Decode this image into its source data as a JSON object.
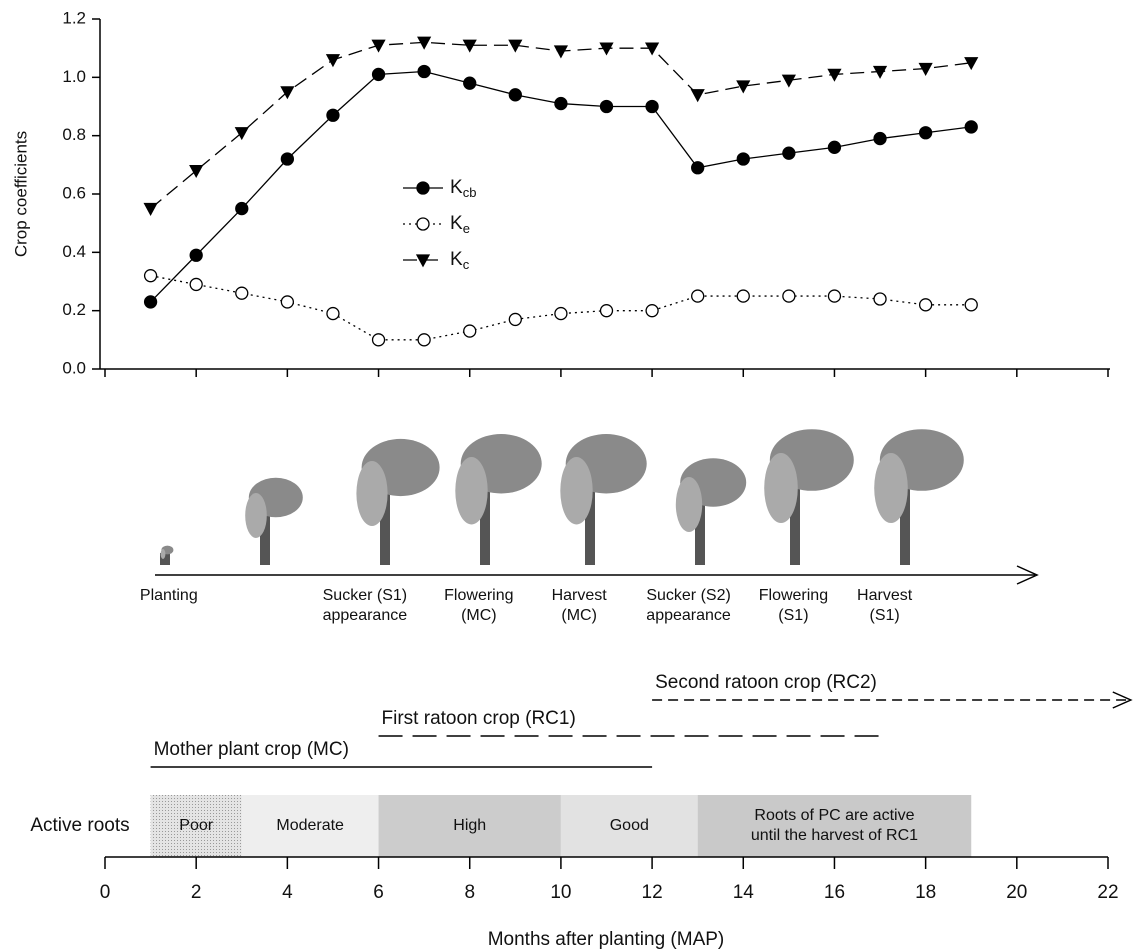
{
  "chart_data": [
    {
      "type": "line",
      "y_label": "Crop coefficients",
      "xlim": [
        0,
        22
      ],
      "xticks": [
        0,
        2,
        4,
        6,
        8,
        10,
        12,
        14,
        16,
        18,
        20,
        22
      ],
      "ylim": [
        0,
        1.2
      ],
      "yticks": [
        {
          "value": 0,
          "label": "0.0"
        },
        {
          "value": 0.2,
          "label": "0.2"
        },
        {
          "value": 0.4,
          "label": "0.4"
        },
        {
          "value": 0.6,
          "label": "0.6"
        },
        {
          "value": 0.8,
          "label": "0.8"
        },
        {
          "value": 1.0,
          "label": "1.0"
        },
        {
          "value": 1.2,
          "label": "1.2"
        }
      ],
      "x": [
        1,
        2,
        3,
        4,
        5,
        6,
        7,
        8,
        9,
        10,
        11,
        12,
        13,
        14,
        15,
        16,
        17,
        18,
        19
      ],
      "series": [
        {
          "name": "Kcb",
          "color": "#000000",
          "marker": "filled-circle",
          "dash": "solid",
          "values": [
            0.23,
            0.39,
            0.55,
            0.72,
            0.87,
            1.01,
            1.02,
            0.98,
            0.94,
            0.91,
            0.9,
            0.9,
            0.69,
            0.72,
            0.74,
            0.76,
            0.79,
            0.81,
            0.83
          ]
        },
        {
          "name": "Ke",
          "color": "#000000",
          "marker": "open-circle",
          "dash": "dotted",
          "values": [
            0.32,
            0.29,
            0.26,
            0.23,
            0.19,
            0.1,
            0.1,
            0.13,
            0.17,
            0.19,
            0.2,
            0.2,
            0.25,
            0.25,
            0.25,
            0.25,
            0.24,
            0.22,
            0.22
          ]
        },
        {
          "name": "Kc",
          "color": "#000000",
          "marker": "triangle-down",
          "dash": "dashed",
          "values": [
            0.55,
            0.68,
            0.81,
            0.95,
            1.06,
            1.11,
            1.12,
            1.11,
            1.11,
            1.09,
            1.1,
            1.1,
            0.94,
            0.97,
            0.99,
            1.01,
            1.02,
            1.03,
            1.05
          ]
        }
      ]
    },
    {
      "type": "timeline",
      "x_label": "Months after planting (MAP)",
      "roots_label": "Active roots",
      "xlim": [
        0,
        22
      ],
      "xticks": [
        0,
        2,
        4,
        6,
        8,
        10,
        12,
        14,
        16,
        18,
        20,
        22
      ],
      "stages": [
        {
          "lines": [
            "Planting"
          ],
          "month": 1.4
        },
        {
          "lines": [
            "Sucker (S1)",
            "appearance"
          ],
          "month": 5.7
        },
        {
          "lines": [
            "Flowering",
            "(MC)"
          ],
          "month": 8.2
        },
        {
          "lines": [
            "Harvest",
            "(MC)"
          ],
          "month": 10.4
        },
        {
          "lines": [
            "Sucker (S2)",
            "appearance"
          ],
          "month": 12.8
        },
        {
          "lines": [
            "Flowering",
            "(S1)"
          ],
          "month": 15.1
        },
        {
          "lines": [
            "Harvest",
            "(S1)"
          ],
          "month": 17.1
        }
      ],
      "crops": [
        {
          "label": "Mother plant crop (MC)",
          "start": 1,
          "end": 12,
          "dash": "solid"
        },
        {
          "label": "First ratoon crop (RC1)",
          "start": 6,
          "end": 17,
          "dash": "long-dash"
        },
        {
          "label": "Second ratoon crop (RC2)",
          "start": 12,
          "end": 22.5,
          "dash": "short-dash-arrow"
        }
      ],
      "roots": [
        {
          "label": [
            "Poor"
          ],
          "start": 1,
          "end": 3,
          "color": "#dcdcdc"
        },
        {
          "label": [
            "Moderate"
          ],
          "start": 3,
          "end": 6,
          "color": "#eeeeee"
        },
        {
          "label": [
            "High"
          ],
          "start": 6,
          "end": 10,
          "color": "#cccccc"
        },
        {
          "label": [
            "Good"
          ],
          "start": 10,
          "end": 13,
          "color": "#e2e2e2"
        },
        {
          "label": [
            "Roots of PC are active",
            "until the harvest of RC1"
          ],
          "start": 13,
          "end": 19,
          "color": "#c9c9c9"
        }
      ]
    }
  ]
}
